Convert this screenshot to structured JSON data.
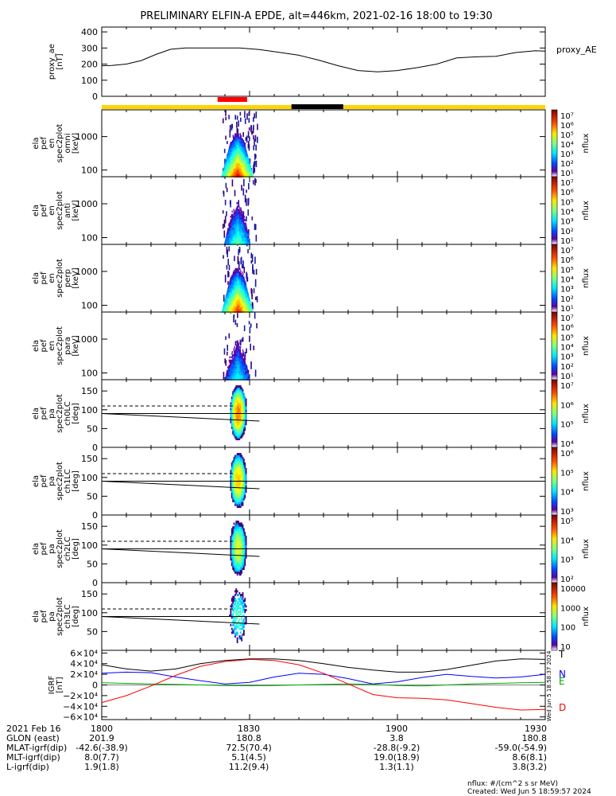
{
  "title": "PRELIMINARY ELFIN-A EPDE, alt=446km, 2021-02-16 18:00 to 19:30",
  "colors": {
    "bar_yellow": "#ffd400",
    "bar_red": "#ff0000",
    "bar_black": "#000000",
    "igrf_north": "#0000ff",
    "igrf_east": "#00aa00",
    "igrf_down": "#ff0000",
    "igrf_total": "#000000"
  },
  "time_axis": {
    "start_min": 0,
    "end_min": 90,
    "tick_minutes": [
      0,
      30,
      60,
      90
    ],
    "tick_labels": [
      "1800",
      "1830",
      "1900",
      "1930"
    ]
  },
  "status_bar": {
    "red_interval_min": [
      23.5,
      29.5
    ],
    "black_interval_min": [
      38.5,
      49.0
    ]
  },
  "panels": [
    {
      "id": "proxy_ae",
      "ylabel_lines": [
        "proxy_ae",
        "[nT]"
      ],
      "right_label": "proxy_AE",
      "yticks": [
        "400",
        "300",
        "200",
        "100",
        "0"
      ]
    },
    {
      "id": "en_omni",
      "ylabel_lines": [
        "ela",
        "pef",
        "en",
        "spec2plot",
        "omni",
        "[keV]"
      ],
      "yticks": [
        "1000",
        "100"
      ],
      "colorbar": {
        "labels": [
          "10⁷",
          "10⁶",
          "10⁵",
          "10⁴",
          "10³",
          "10²",
          "10¹"
        ],
        "unit": "nflux"
      }
    },
    {
      "id": "en_anti",
      "ylabel_lines": [
        "ela",
        "pef",
        "en",
        "spec2plot",
        "anti",
        "[keV]"
      ],
      "yticks": [
        "1000",
        "100"
      ],
      "colorbar": {
        "labels": [
          "10⁷",
          "10⁶",
          "10⁵",
          "10⁴",
          "10³",
          "10²",
          "10¹"
        ],
        "unit": "nflux"
      }
    },
    {
      "id": "en_perp",
      "ylabel_lines": [
        "ela",
        "pef",
        "en",
        "spec2plot",
        "perp",
        "[keV]"
      ],
      "yticks": [
        "1000",
        "100"
      ],
      "colorbar": {
        "labels": [
          "10⁷",
          "10⁶",
          "10⁵",
          "10⁴",
          "10³",
          "10²",
          "10¹"
        ],
        "unit": "nflux"
      }
    },
    {
      "id": "en_para",
      "ylabel_lines": [
        "ela",
        "pef",
        "en",
        "spec2plot",
        "para",
        "[keV]"
      ],
      "yticks": [
        "1000",
        "100"
      ],
      "colorbar": {
        "labels": [
          "10⁷",
          "10⁶",
          "10⁵",
          "10⁴",
          "10³",
          "10²",
          "10¹"
        ],
        "unit": "nflux"
      }
    },
    {
      "id": "pa_ch0",
      "ylabel_lines": [
        "ela",
        "pef",
        "pa",
        "spec2plot",
        "ch0LC",
        "[deg]"
      ],
      "yticks": [
        "150",
        "100",
        "50",
        "0"
      ],
      "colorbar": {
        "labels": [
          "10⁷",
          "10⁶",
          "10⁵",
          "10⁴"
        ],
        "unit": "nflux"
      }
    },
    {
      "id": "pa_ch1",
      "ylabel_lines": [
        "ela",
        "pef",
        "pa",
        "spec2plot",
        "ch1LC",
        "[deg]"
      ],
      "yticks": [
        "150",
        "100",
        "50",
        "0"
      ],
      "colorbar": {
        "labels": [
          "10⁶",
          "10⁵",
          "10⁴",
          "10³"
        ],
        "unit": "nflux"
      }
    },
    {
      "id": "pa_ch2",
      "ylabel_lines": [
        "ela",
        "pef",
        "pa",
        "spec2plot",
        "ch2LC",
        "[deg]"
      ],
      "yticks": [
        "150",
        "100",
        "50",
        "0"
      ],
      "colorbar": {
        "labels": [
          "10⁵",
          "10⁴",
          "10³",
          "10²"
        ],
        "unit": "nflux"
      }
    },
    {
      "id": "pa_ch3",
      "ylabel_lines": [
        "ela",
        "pef",
        "pa",
        "spec2plot",
        "ch3LC",
        "[deg]"
      ],
      "yticks": [
        "150",
        "100",
        "50"
      ],
      "colorbar": {
        "labels": [
          "10000",
          "1000",
          "100",
          "10"
        ],
        "unit": "nflux"
      }
    },
    {
      "id": "igrf",
      "ylabel_lines": [
        "IGRF",
        "[nT]"
      ],
      "yticks": [
        "6×10⁴",
        "4×10⁴",
        "2×10⁴",
        "0",
        "−2×10⁴",
        "−4×10⁴",
        "−6×10⁴"
      ],
      "legend": [
        "T",
        "N",
        "E",
        "D"
      ],
      "side_text": "Wed Jun  5 18:58:37 2024"
    }
  ],
  "footer_rows": [
    {
      "label": "2021 Feb 16",
      "values": [
        "1800",
        "1830",
        "1900",
        "1930"
      ]
    },
    {
      "label": "GLON (east)",
      "values": [
        "201.9",
        "180.8",
        "3.8",
        "180.8"
      ]
    },
    {
      "label": "MLAT-igrf(dip)",
      "values": [
        "-42.6(-38.9)",
        "72.5(70.4)",
        "-28.8(-9.2)",
        "-59.0(-54.9)"
      ]
    },
    {
      "label": "MLT-igrf(dip)",
      "values": [
        "8.0(7.7)",
        "5.1(4.5)",
        "19.0(18.9)",
        "8.6(8.1)"
      ]
    },
    {
      "label": "L-igrf(dip)",
      "values": [
        "1.9(1.8)",
        "11.2(9.4)",
        "1.3(1.1)",
        "3.8(3.2)"
      ]
    }
  ],
  "footnote": {
    "units": "nflux: #/(cm^2 s sr MeV)",
    "created": "Created: Wed Jun  5 18:59:57 2024"
  },
  "chart_data": [
    {
      "type": "line",
      "panel": "proxy_ae",
      "x_minutes": [
        0,
        2,
        5,
        8,
        11,
        14,
        17,
        20,
        24,
        28,
        32,
        36,
        40,
        44,
        48,
        52,
        56,
        60,
        64,
        68,
        72,
        76,
        80,
        84,
        88,
        90
      ],
      "y": [
        190,
        192,
        200,
        222,
        260,
        292,
        300,
        300,
        300,
        300,
        290,
        273,
        255,
        225,
        190,
        160,
        152,
        160,
        178,
        200,
        238,
        245,
        248,
        272,
        283,
        280
      ],
      "ylim": [
        0,
        430
      ]
    },
    {
      "type": "heatmap",
      "panels": [
        "en_omni",
        "en_anti",
        "en_perp",
        "en_para"
      ],
      "y_scale": "log",
      "event_interval_min": [
        24.5,
        31.5
      ]
    },
    {
      "type": "heatmap",
      "panels": [
        "pa_ch0",
        "pa_ch1",
        "pa_ch2",
        "pa_ch3"
      ],
      "ylim": [
        0,
        180
      ],
      "reference_lines": {
        "solid_deg": 90,
        "dashed_deg": 110,
        "loss_cone_start_deg": 90,
        "loss_cone_end_deg": 70
      }
    },
    {
      "type": "line",
      "panel": "igrf",
      "ylim": [
        -65000,
        65000
      ],
      "x_minutes": [
        0,
        5,
        10,
        15,
        20,
        25,
        30,
        35,
        40,
        45,
        50,
        55,
        60,
        65,
        70,
        75,
        80,
        85,
        90
      ],
      "series": [
        {
          "name": "T",
          "values": [
            38000,
            30000,
            26000,
            30000,
            40000,
            46000,
            49000,
            49000,
            46000,
            40000,
            33000,
            28000,
            24000,
            24000,
            29000,
            37000,
            45000,
            49000,
            48000
          ]
        },
        {
          "name": "N",
          "values": [
            22000,
            24000,
            23000,
            15000,
            8000,
            2000,
            5000,
            15000,
            22000,
            20000,
            12000,
            2000,
            6000,
            14000,
            20000,
            16000,
            13000,
            15000,
            20000
          ]
        },
        {
          "name": "E",
          "values": [
            4000,
            3000,
            2000,
            1000,
            0,
            -1000,
            -1500,
            -1000,
            0,
            1000,
            2000,
            1000,
            -1000,
            -2000,
            0,
            2000,
            3000,
            4000,
            5000
          ]
        },
        {
          "name": "D",
          "values": [
            -33000,
            -20000,
            -2000,
            18000,
            35000,
            44000,
            48000,
            46000,
            38000,
            22000,
            2000,
            -18000,
            -24000,
            -25000,
            -28000,
            -35000,
            -42000,
            -47000,
            -46000
          ]
        }
      ]
    }
  ]
}
